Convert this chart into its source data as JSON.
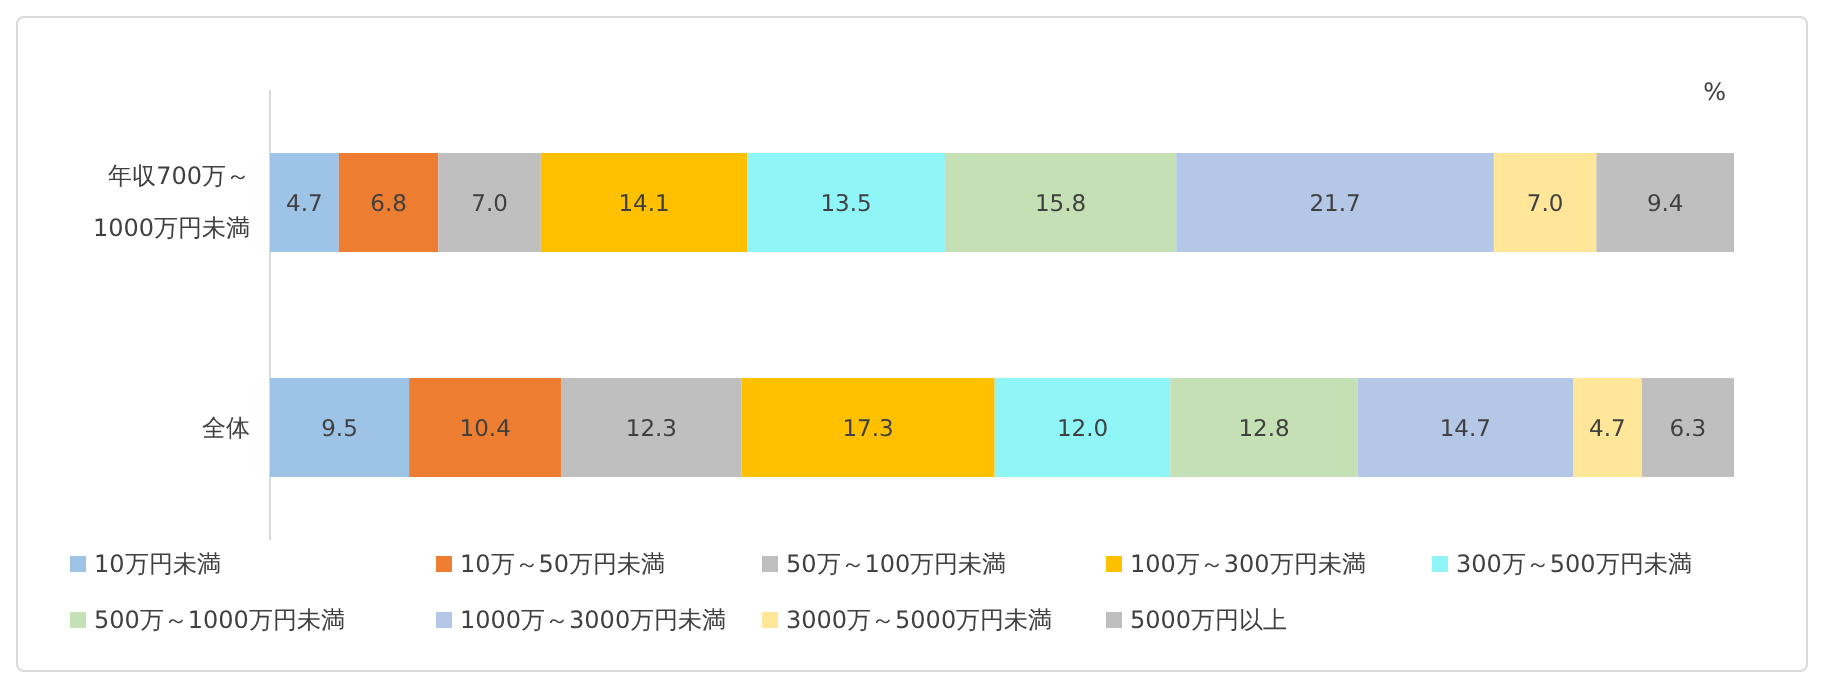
{
  "chart_data": {
    "type": "bar",
    "orientation": "horizontal",
    "stacked": true,
    "legend": "bottom",
    "categories": [
      "年収700万～1000万円未満",
      "全体"
    ],
    "series": [
      {
        "name": "10万円未満",
        "color": "#9dc3e6",
        "values": [
          4.7,
          9.5
        ],
        "value_labels": [
          "4.7",
          "9.5"
        ]
      },
      {
        "name": "10万～50万円未満",
        "color": "#ed7d31",
        "values": [
          6.8,
          10.4
        ],
        "value_labels": [
          "6.8",
          "10.4"
        ]
      },
      {
        "name": "50万～100万円未満",
        "color": "#bfbfbf",
        "values": [
          7.0,
          12.3
        ],
        "value_labels": [
          "7.0",
          "12.3"
        ]
      },
      {
        "name": "100万～300万円未満",
        "color": "#ffc000",
        "values": [
          14.1,
          17.3
        ],
        "value_labels": [
          "14.1",
          "17.3"
        ]
      },
      {
        "name": "300万～500万円未満",
        "color": "#8ff5f7",
        "values": [
          13.5,
          12.0
        ],
        "value_labels": [
          "13.5",
          "12.0"
        ]
      },
      {
        "name": "500万～1000万円未満",
        "color": "#c5e0b4",
        "values": [
          15.8,
          12.8
        ],
        "value_labels": [
          "15.8",
          "12.8"
        ]
      },
      {
        "name": "1000万～3000万円未満",
        "color": "#b4c7e7",
        "values": [
          21.7,
          14.7
        ],
        "value_labels": [
          "21.7",
          "14.7"
        ]
      },
      {
        "name": "3000万～5000万円未満",
        "color": "#ffe699",
        "values": [
          7.0,
          4.7
        ],
        "value_labels": [
          "7.0",
          "4.7"
        ]
      },
      {
        "name": "5000万円以上",
        "color": "#bfbfbf",
        "values": [
          9.4,
          6.3
        ],
        "value_labels": [
          "9.4",
          "6.3"
        ]
      }
    ],
    "annotations": [
      "%"
    ]
  }
}
